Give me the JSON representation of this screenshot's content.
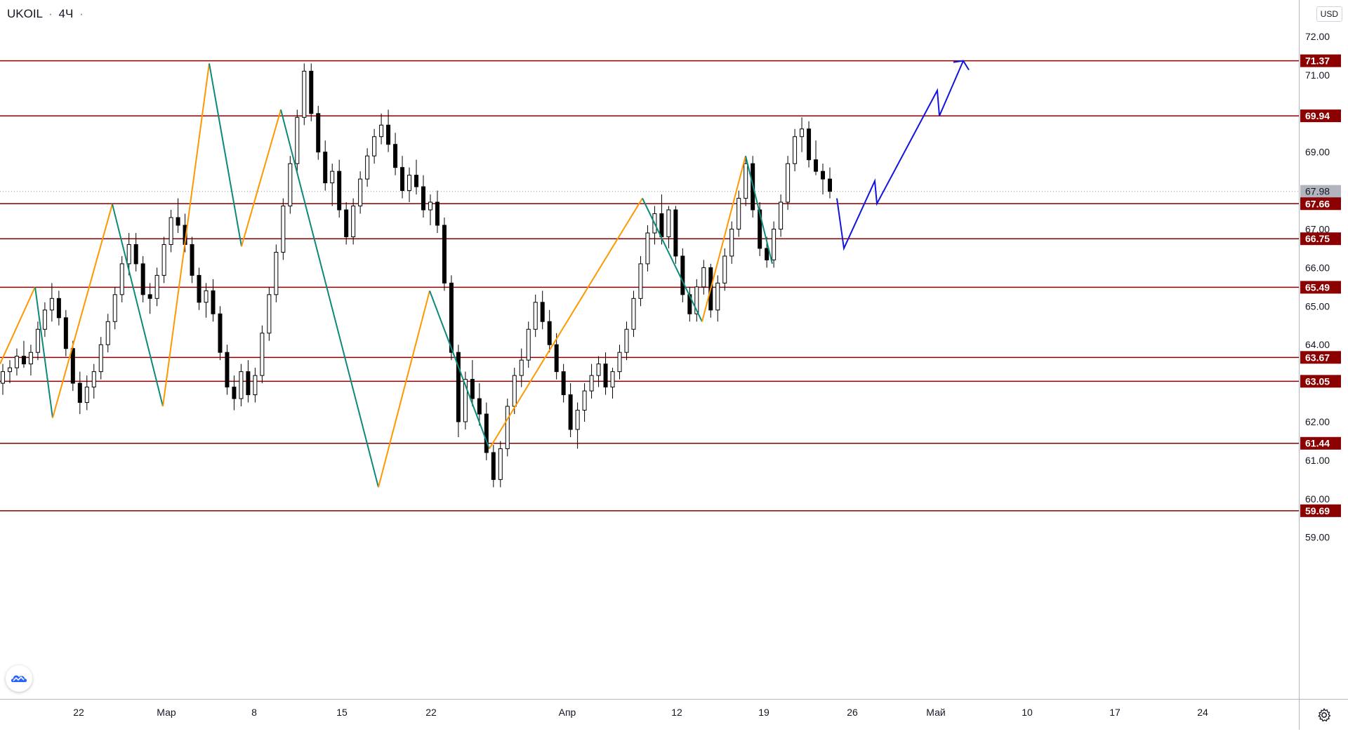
{
  "header": {
    "symbol": "UKOIL",
    "interval": "4Ч",
    "currency_button": "USD"
  },
  "colors": {
    "level_line": "#8b0000",
    "level_tag": "#8b0000",
    "current_tag": "#b2b5be",
    "up_candle": "#ffffff",
    "down_candle": "#000000",
    "zigzag_up": "#ff9800",
    "zigzag_down": "#0b8a7a",
    "forecast": "#1414e0"
  },
  "icons": {
    "logo": "tradingview-cloud-icon",
    "settings": "gear-icon"
  },
  "chart_data": {
    "type": "candlestick",
    "symbol": "UKOIL",
    "timeframe": "4Ч",
    "currency": "USD",
    "ylim": [
      58.3,
      73.3
    ],
    "y_ticks": [
      "59.00",
      "60.00",
      "61.00",
      "62.00",
      "63.00",
      "64.00",
      "65.00",
      "66.00",
      "67.00",
      "68.00",
      "69.00",
      "70.00",
      "71.00",
      "72.00"
    ],
    "x_ticks": [
      "22",
      "Мар",
      "8",
      "15",
      "22",
      "Апр",
      "12",
      "19",
      "26",
      "Май",
      "10",
      "17",
      "24"
    ],
    "levels": [
      71.37,
      69.94,
      67.66,
      66.75,
      65.49,
      63.67,
      63.05,
      61.44,
      59.69
    ],
    "level_labels": [
      "71.37",
      "69.94",
      "67.66",
      "66.75",
      "65.49",
      "63.67",
      "63.05",
      "61.44",
      "59.69"
    ],
    "current_price": 67.98,
    "current_price_label": "67.98",
    "zigzag": [
      {
        "t": 0,
        "p": 63.5
      },
      {
        "t": 50,
        "p": 65.5
      },
      {
        "t": 75,
        "p": 62.1
      },
      {
        "t": 160,
        "p": 67.65
      },
      {
        "t": 232,
        "p": 62.4
      },
      {
        "t": 298,
        "p": 71.3
      },
      {
        "t": 344,
        "p": 66.55
      },
      {
        "t": 400,
        "p": 70.1
      },
      {
        "t": 539,
        "p": 60.3
      },
      {
        "t": 612,
        "p": 65.4
      },
      {
        "t": 697,
        "p": 61.3
      },
      {
        "t": 915,
        "p": 67.8
      },
      {
        "t": 1000,
        "p": 64.6
      },
      {
        "t": 1062,
        "p": 68.9
      },
      {
        "t": 1100,
        "p": 66.1
      }
    ],
    "candles_ohlc": [
      [
        63.0,
        63.5,
        62.7,
        63.3
      ],
      [
        63.3,
        63.6,
        63.0,
        63.4
      ],
      [
        63.4,
        63.9,
        63.2,
        63.7
      ],
      [
        63.7,
        64.1,
        63.4,
        63.5
      ],
      [
        63.5,
        64.0,
        63.2,
        63.8
      ],
      [
        63.8,
        64.6,
        63.6,
        64.4
      ],
      [
        64.4,
        65.1,
        64.2,
        64.9
      ],
      [
        64.9,
        65.6,
        64.6,
        65.2
      ],
      [
        65.2,
        65.4,
        64.5,
        64.7
      ],
      [
        64.7,
        64.9,
        63.7,
        63.9
      ],
      [
        63.9,
        64.1,
        62.8,
        63.0
      ],
      [
        63.0,
        63.3,
        62.2,
        62.5
      ],
      [
        62.5,
        63.2,
        62.3,
        62.9
      ],
      [
        62.9,
        63.5,
        62.6,
        63.3
      ],
      [
        63.3,
        64.2,
        63.1,
        64.0
      ],
      [
        64.0,
        64.8,
        63.8,
        64.6
      ],
      [
        64.6,
        65.5,
        64.4,
        65.3
      ],
      [
        65.3,
        66.3,
        65.1,
        66.1
      ],
      [
        66.1,
        66.9,
        65.8,
        66.6
      ],
      [
        66.6,
        66.9,
        65.9,
        66.1
      ],
      [
        66.1,
        66.3,
        65.1,
        65.3
      ],
      [
        65.3,
        65.6,
        64.8,
        65.2
      ],
      [
        65.2,
        66.0,
        65.0,
        65.8
      ],
      [
        65.8,
        66.8,
        65.6,
        66.6
      ],
      [
        66.6,
        67.5,
        66.4,
        67.3
      ],
      [
        67.3,
        67.8,
        66.9,
        67.1
      ],
      [
        67.1,
        67.4,
        66.4,
        66.6
      ],
      [
        66.6,
        66.8,
        65.6,
        65.8
      ],
      [
        65.8,
        66.0,
        64.9,
        65.1
      ],
      [
        65.1,
        65.6,
        64.7,
        65.4
      ],
      [
        65.4,
        65.7,
        64.6,
        64.8
      ],
      [
        64.8,
        65.0,
        63.6,
        63.8
      ],
      [
        63.8,
        64.0,
        62.7,
        62.9
      ],
      [
        62.9,
        63.2,
        62.3,
        62.6
      ],
      [
        62.6,
        63.5,
        62.4,
        63.3
      ],
      [
        63.3,
        63.6,
        62.5,
        62.7
      ],
      [
        62.7,
        63.4,
        62.5,
        63.2
      ],
      [
        63.2,
        64.5,
        63.0,
        64.3
      ],
      [
        64.3,
        65.5,
        64.1,
        65.3
      ],
      [
        65.3,
        66.6,
        65.1,
        66.4
      ],
      [
        66.4,
        67.8,
        66.2,
        67.6
      ],
      [
        67.6,
        68.9,
        67.4,
        68.7
      ],
      [
        68.7,
        70.1,
        68.5,
        69.9
      ],
      [
        69.9,
        71.3,
        69.7,
        71.1
      ],
      [
        71.1,
        71.3,
        69.8,
        70.0
      ],
      [
        70.0,
        70.2,
        68.8,
        69.0
      ],
      [
        69.0,
        69.3,
        68.0,
        68.2
      ],
      [
        68.2,
        68.7,
        67.6,
        68.5
      ],
      [
        68.5,
        68.8,
        67.3,
        67.5
      ],
      [
        67.5,
        67.7,
        66.6,
        66.8
      ],
      [
        66.8,
        67.8,
        66.6,
        67.6
      ],
      [
        67.6,
        68.5,
        67.4,
        68.3
      ],
      [
        68.3,
        69.1,
        68.1,
        68.9
      ],
      [
        68.9,
        69.6,
        68.7,
        69.4
      ],
      [
        69.4,
        70.0,
        69.2,
        69.7
      ],
      [
        69.7,
        70.1,
        69.0,
        69.2
      ],
      [
        69.2,
        69.5,
        68.4,
        68.6
      ],
      [
        68.6,
        68.9,
        67.8,
        68.0
      ],
      [
        68.0,
        68.6,
        67.7,
        68.4
      ],
      [
        68.4,
        68.8,
        67.9,
        68.1
      ],
      [
        68.1,
        68.4,
        67.3,
        67.5
      ],
      [
        67.5,
        67.9,
        67.1,
        67.7
      ],
      [
        67.7,
        68.0,
        66.9,
        67.1
      ],
      [
        67.1,
        67.3,
        65.4,
        65.6
      ],
      [
        65.6,
        65.8,
        63.6,
        63.8
      ],
      [
        63.8,
        64.0,
        61.6,
        62.0
      ],
      [
        62.0,
        63.3,
        61.8,
        63.1
      ],
      [
        63.1,
        63.6,
        62.4,
        62.6
      ],
      [
        62.6,
        63.0,
        61.9,
        62.2
      ],
      [
        62.2,
        62.5,
        61.0,
        61.2
      ],
      [
        61.2,
        61.4,
        60.3,
        60.5
      ],
      [
        60.5,
        61.5,
        60.3,
        61.3
      ],
      [
        61.3,
        62.6,
        61.1,
        62.4
      ],
      [
        62.4,
        63.4,
        62.2,
        63.2
      ],
      [
        63.2,
        63.9,
        62.9,
        63.6
      ],
      [
        63.6,
        64.6,
        63.4,
        64.4
      ],
      [
        64.4,
        65.3,
        64.2,
        65.1
      ],
      [
        65.1,
        65.4,
        64.4,
        64.6
      ],
      [
        64.6,
        64.9,
        63.8,
        64.0
      ],
      [
        64.0,
        64.3,
        63.1,
        63.3
      ],
      [
        63.3,
        63.5,
        62.5,
        62.7
      ],
      [
        62.7,
        63.0,
        61.6,
        61.8
      ],
      [
        61.8,
        62.5,
        61.3,
        62.3
      ],
      [
        62.3,
        63.0,
        62.0,
        62.8
      ],
      [
        62.8,
        63.5,
        62.6,
        63.2
      ],
      [
        63.2,
        63.7,
        62.9,
        63.5
      ],
      [
        63.5,
        63.8,
        62.7,
        62.9
      ],
      [
        62.9,
        63.4,
        62.6,
        63.3
      ],
      [
        63.3,
        64.0,
        63.1,
        63.8
      ],
      [
        63.8,
        64.6,
        63.6,
        64.4
      ],
      [
        64.4,
        65.4,
        64.2,
        65.2
      ],
      [
        65.2,
        66.3,
        65.0,
        66.1
      ],
      [
        66.1,
        67.1,
        65.9,
        66.9
      ],
      [
        66.9,
        67.6,
        66.6,
        67.4
      ],
      [
        67.4,
        67.9,
        66.6,
        66.8
      ],
      [
        66.8,
        67.6,
        66.5,
        67.5
      ],
      [
        67.5,
        67.6,
        66.1,
        66.3
      ],
      [
        66.3,
        66.5,
        65.1,
        65.3
      ],
      [
        65.3,
        65.5,
        64.6,
        64.8
      ],
      [
        64.8,
        65.7,
        64.6,
        65.5
      ],
      [
        65.5,
        66.2,
        65.3,
        66.0
      ],
      [
        66.0,
        66.1,
        64.7,
        64.9
      ],
      [
        64.9,
        65.8,
        64.6,
        65.6
      ],
      [
        65.6,
        66.5,
        65.4,
        66.3
      ],
      [
        66.3,
        67.2,
        66.1,
        67.0
      ],
      [
        67.0,
        68.0,
        66.8,
        67.8
      ],
      [
        67.8,
        68.9,
        67.6,
        68.7
      ],
      [
        68.7,
        68.9,
        67.3,
        67.5
      ],
      [
        67.5,
        67.7,
        66.3,
        66.5
      ],
      [
        66.5,
        66.8,
        66.0,
        66.2
      ],
      [
        66.2,
        67.2,
        66.0,
        67.0
      ],
      [
        67.0,
        67.9,
        66.8,
        67.7
      ],
      [
        67.7,
        68.9,
        67.5,
        68.7
      ],
      [
        68.7,
        69.6,
        68.5,
        69.4
      ],
      [
        69.4,
        69.9,
        69.0,
        69.6
      ],
      [
        69.6,
        69.8,
        68.6,
        68.8
      ],
      [
        68.8,
        69.3,
        68.4,
        68.5
      ],
      [
        68.5,
        68.7,
        67.9,
        68.3
      ],
      [
        68.3,
        68.6,
        67.8,
        67.98
      ]
    ],
    "forecast_path": [
      {
        "t": 1192,
        "p": 67.8
      },
      {
        "t": 1202,
        "p": 66.5
      },
      {
        "t": 1246,
        "p": 68.25
      },
      {
        "t": 1249,
        "p": 67.66
      },
      {
        "t": 1335,
        "p": 70.6
      },
      {
        "t": 1338,
        "p": 69.94
      },
      {
        "t": 1372,
        "p": 71.37
      }
    ]
  }
}
